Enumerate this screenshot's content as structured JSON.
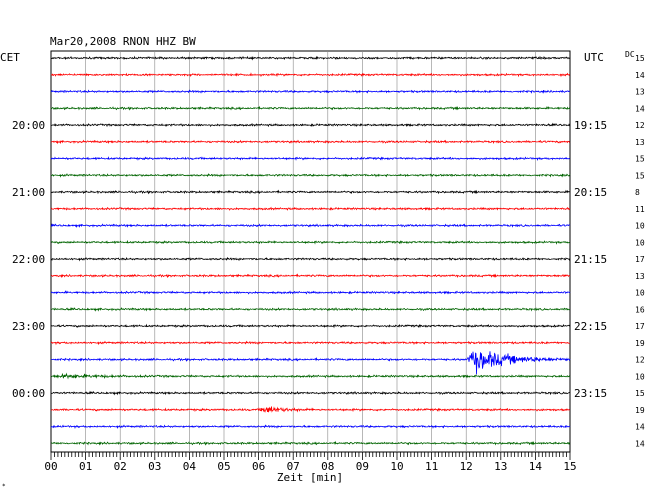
{
  "chart_data": {
    "type": "line",
    "title": "Mar20,2008    RNON HHZ BW",
    "left_label": "CET",
    "right_label": "UTC",
    "dc_label": "DC",
    "xlabel": "Zeit [min]",
    "xlim": [
      0,
      15
    ],
    "x_ticks": [
      "00",
      "01",
      "02",
      "03",
      "04",
      "05",
      "06",
      "07",
      "08",
      "09",
      "10",
      "11",
      "12",
      "13",
      "14",
      "15"
    ],
    "trace_colors": [
      "#000000",
      "#ff0000",
      "#0000ff",
      "#006400"
    ],
    "left_time_labels": [
      {
        "trace": 4,
        "text": "20:00"
      },
      {
        "trace": 8,
        "text": "21:00"
      },
      {
        "trace": 12,
        "text": "22:00"
      },
      {
        "trace": 16,
        "text": "23:00"
      },
      {
        "trace": 20,
        "text": "00:00"
      }
    ],
    "right_time_labels": [
      {
        "trace": 4,
        "text": "19:15"
      },
      {
        "trace": 8,
        "text": "20:15"
      },
      {
        "trace": 12,
        "text": "21:15"
      },
      {
        "trace": 16,
        "text": "22:15"
      },
      {
        "trace": 20,
        "text": "23:15"
      }
    ],
    "dc_values": [
      15,
      14,
      13,
      14,
      12,
      13,
      15,
      15,
      8,
      11,
      10,
      10,
      17,
      13,
      10,
      16,
      17,
      19,
      12,
      10,
      15,
      19,
      14,
      14
    ],
    "events": [
      {
        "trace": 18,
        "start_min": 12.0,
        "peak_min": 12.3,
        "end_min": 15.0,
        "peak_amplitude": 4.5
      },
      {
        "trace": 21,
        "start_min": 6.0,
        "peak_min": 6.2,
        "end_min": 7.6,
        "peak_amplitude": 1.4
      },
      {
        "trace": 19,
        "start_min": 0.0,
        "peak_min": 0.5,
        "end_min": 3.0,
        "peak_amplitude": 0.6
      }
    ]
  },
  "footer_mark": "*"
}
